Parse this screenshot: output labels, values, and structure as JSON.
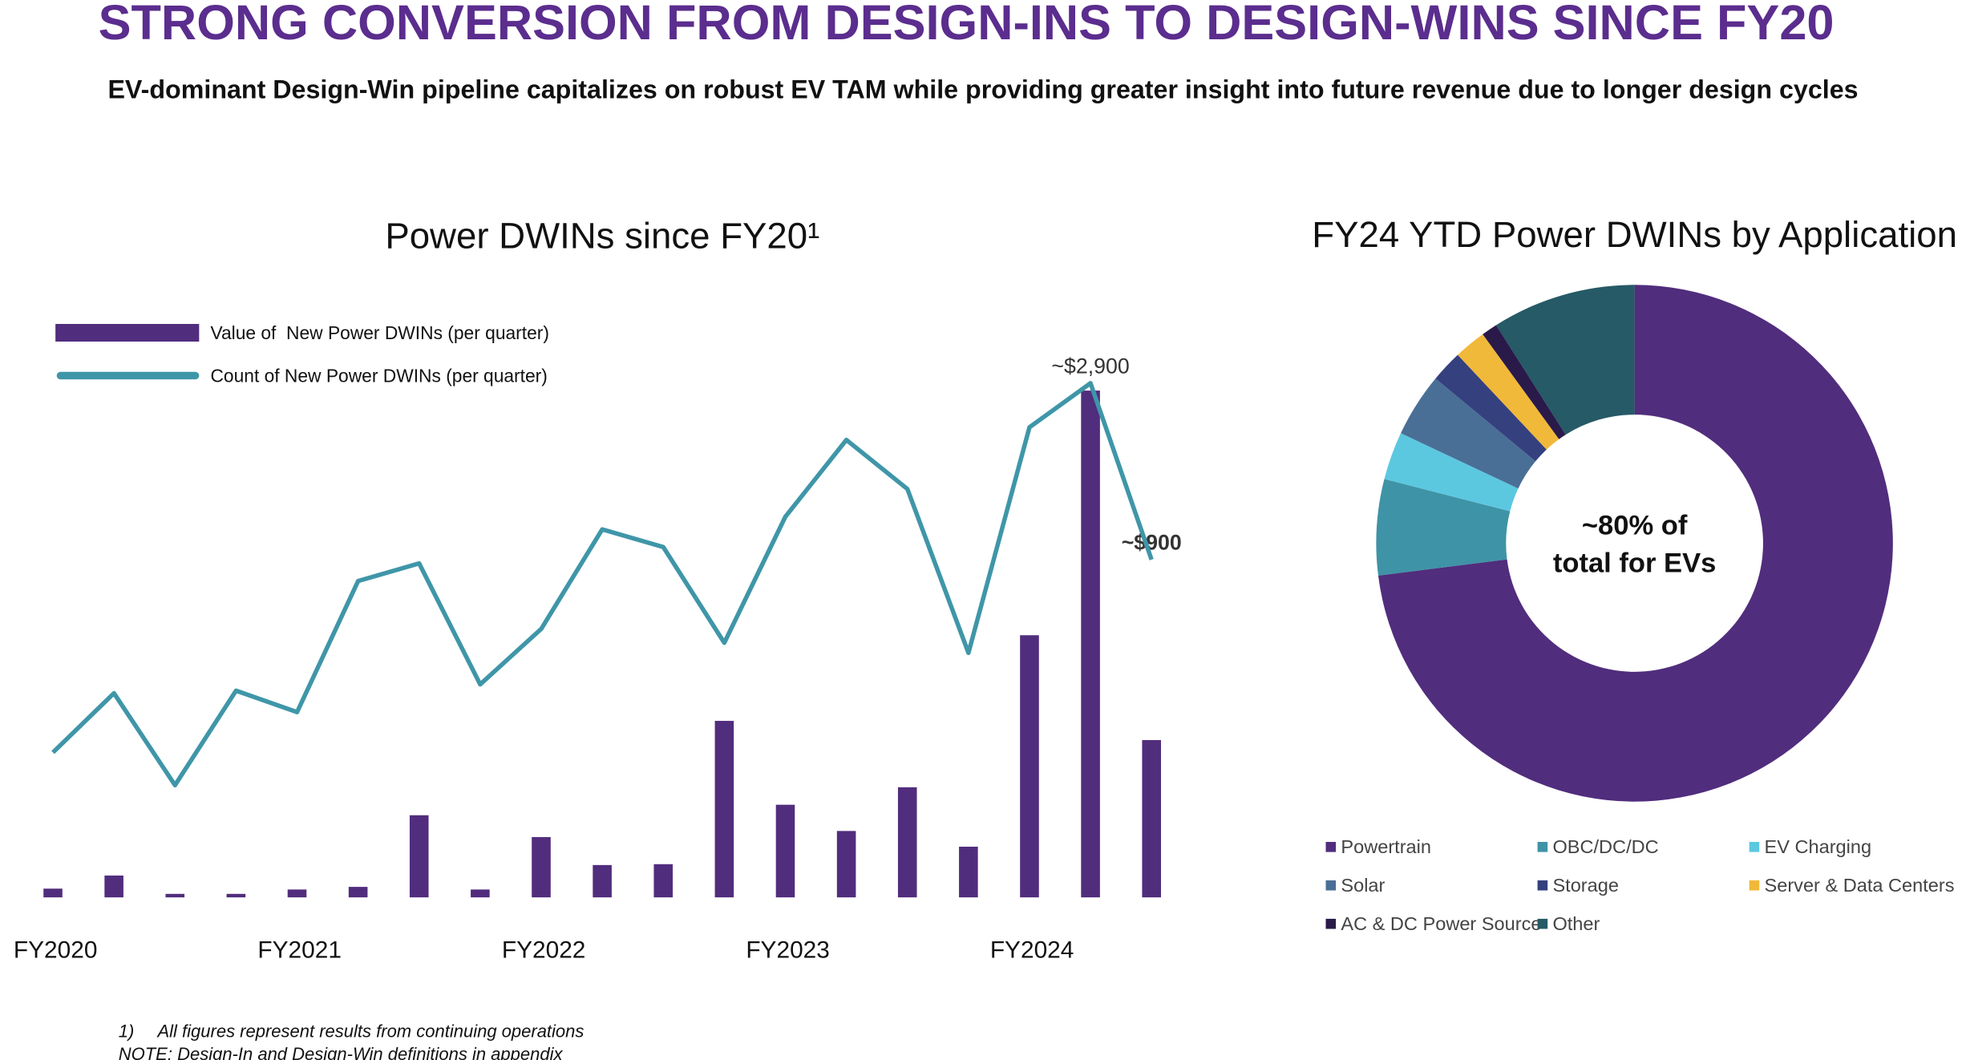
{
  "title": "STRONG CONVERSION FROM DESIGN-INS TO DESIGN-WINS SINCE FY20",
  "subtitle": "EV-dominant Design-Win pipeline capitalizes on robust EV TAM while providing greater insight into future revenue due to longer design cycles",
  "footnote_marker": "1)",
  "footnote": "All figures represent results from continuing operations",
  "note": "NOTE: Design-In and Design-Win definitions in appendix",
  "chart_data": [
    {
      "type": "bar",
      "title": "Power DWINs since FY20¹",
      "categories": [
        "FY2020",
        null,
        null,
        null,
        "FY2021",
        null,
        null,
        null,
        "FY2022",
        null,
        null,
        null,
        "FY2023",
        null,
        null,
        null,
        "FY2024",
        null,
        null
      ],
      "series": [
        {
          "name": "Value of  New Power DWINs (per quarter)",
          "color": "#512d7d",
          "values": [
            50,
            125,
            20,
            20,
            45,
            60,
            470,
            45,
            345,
            185,
            190,
            1010,
            530,
            380,
            630,
            290,
            1500,
            2900,
            900
          ],
          "value_labels": [
            null,
            null,
            null,
            null,
            null,
            null,
            null,
            null,
            null,
            null,
            null,
            null,
            null,
            null,
            null,
            null,
            null,
            "~$2,900",
            "~$900"
          ]
        },
        {
          "name": "Count of New Power DWINs (per quarter)",
          "color": "#3f96a8",
          "type": "line",
          "axis": "y2",
          "values": [
            115,
            162,
            89,
            164,
            147,
            251,
            265,
            169,
            213,
            292,
            278,
            202,
            302,
            363,
            324,
            194,
            373,
            408,
            268
          ]
        }
      ],
      "ylim": [
        0,
        3000
      ],
      "y2lim": [
        0,
        416
      ],
      "grid": false,
      "legend": "top-left"
    },
    {
      "type": "pie",
      "title": "FY24 YTD Power DWINs by Application",
      "categories": [
        "Powertrain",
        "OBC/DC/DC",
        "EV Charging",
        "Solar",
        "Storage",
        "Server & Data Centers",
        "AC & DC Power Source",
        "Other"
      ],
      "values": [
        73,
        6,
        3,
        4,
        2,
        2,
        1,
        9
      ],
      "colors": [
        "#512d7d",
        "#3f93a6",
        "#5bc8e0",
        "#4a6f96",
        "#35407f",
        "#f1b93a",
        "#2a1a4a",
        "#255a66"
      ],
      "center_label": [
        "~80% of",
        "total for EVs"
      ],
      "legend": "bottom"
    }
  ]
}
